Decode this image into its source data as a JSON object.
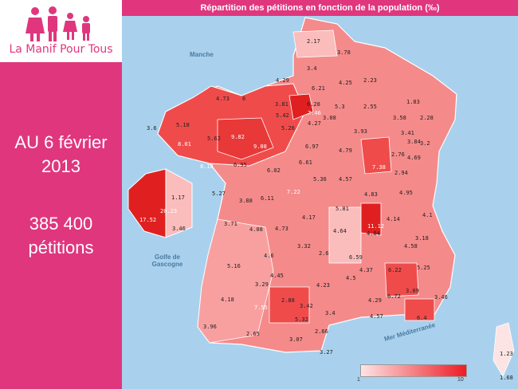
{
  "brand": {
    "name": "La Manif Pour Tous",
    "color": "#e0367e"
  },
  "sidebar": {
    "date_line1": "AU 6 février",
    "date_line2": "2013",
    "count": "385 400",
    "count_label": "pétitions"
  },
  "map": {
    "title": "Répartition des pétitions en fonction de la population (‰)",
    "seas": {
      "manche": "Manche",
      "golfe_1": "Golfe de",
      "golfe_2": "Gascogne",
      "med": "Mer Méditerranée"
    },
    "legend": {
      "min": "1",
      "max": "10",
      "color_low": "#fde4e4",
      "color_high": "#ee1c25"
    },
    "values": [
      "2.17",
      "3.78",
      "3.4",
      "4.29",
      "6.21",
      "4.25",
      "2.23",
      "4.73",
      "6",
      "3.81",
      "6.28",
      "7.46",
      "5.3",
      "2.55",
      "1.83",
      "5.42",
      "4.27",
      "3.08",
      "3.58",
      "2.28",
      "3.6",
      "5.18",
      "5.62",
      "9.82",
      "5.26",
      "3.93",
      "3.41",
      "8.01",
      "9.08",
      "6.97",
      "4.79",
      "3.84",
      "3.2",
      "2.76",
      "4.69",
      "8.18",
      "6.95",
      "6.02",
      "6.61",
      "7.38",
      "2.94",
      "5.36",
      "4.57",
      "5.27",
      "3.88",
      "6.11",
      "7.22",
      "4.83",
      "4.95",
      "1.17",
      "20.23",
      "17.52",
      "3.46",
      "5.81",
      "3.71",
      "4.08",
      "4.73",
      "4.17",
      "11.12",
      "4.14",
      "4.1",
      "4.64",
      "4.84",
      "3.18",
      "3.32",
      "2.6",
      "4.58",
      "4.6",
      "6.59",
      "5.16",
      "4.45",
      "4.37",
      "6.22",
      "5.25",
      "3.29",
      "4.23",
      "4.5",
      "3.09",
      "4.18",
      "2.88",
      "6.72",
      "3.46",
      "7.55",
      "3.42",
      "4.29",
      "5.32",
      "3.4",
      "4.57",
      "6.4",
      "3.96",
      "2.65",
      "3.07",
      "2.66",
      "3.27",
      "1.23",
      "1.68"
    ]
  }
}
